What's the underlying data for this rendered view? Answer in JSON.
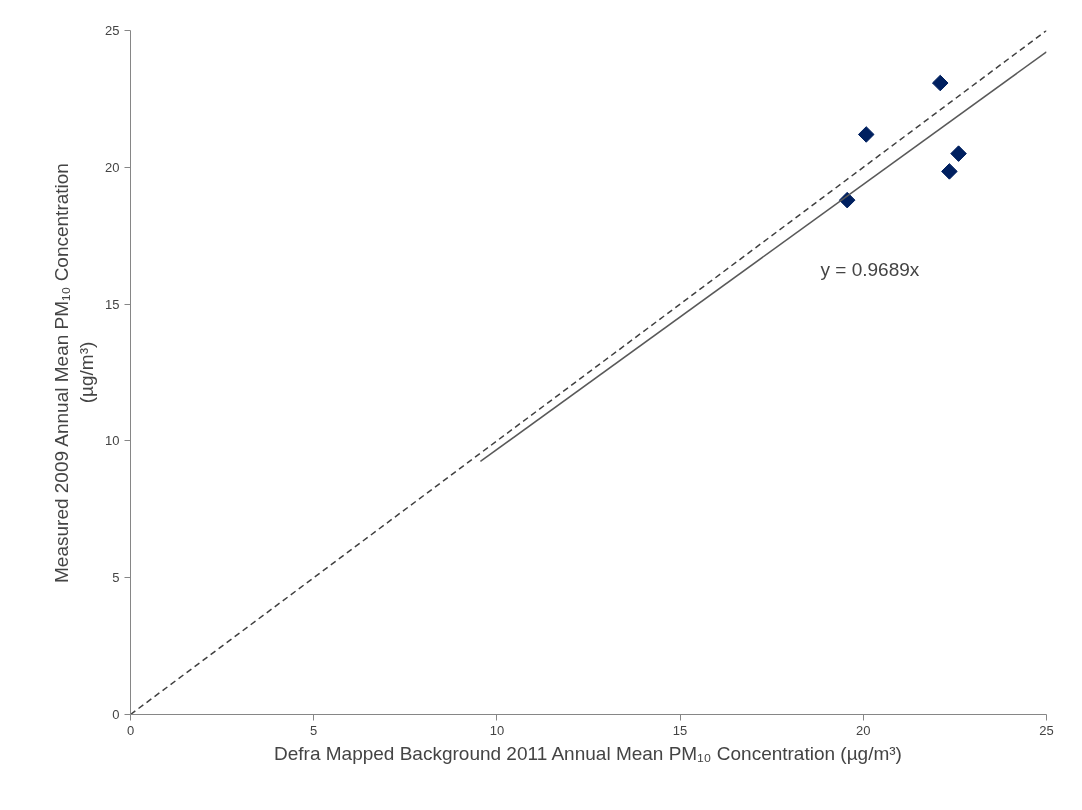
{
  "chart_data": {
    "type": "scatter",
    "xlabel": "Defra Mapped Background 2011 Annual Mean PM₁₀ Concentration (µg/m³)",
    "ylabel": "Measured 2009 Annual Mean PM₁₀ Concentration\n(µg/m³)",
    "xlim": [
      0,
      25
    ],
    "ylim": [
      0,
      25
    ],
    "xticks": [
      0,
      5,
      10,
      15,
      20,
      25
    ],
    "yticks": [
      0,
      5,
      10,
      15,
      20,
      25
    ],
    "grid": false,
    "series": [
      {
        "color": "#002060",
        "marker": "diamond",
        "x": [
          19.56,
          20.08,
          22.1,
          22.35,
          22.6
        ],
        "values": [
          18.8,
          21.2,
          23.08,
          19.85,
          20.5
        ]
      },
      {
        "type": "line",
        "color": "#595959",
        "line_style": "solid",
        "marker": "none",
        "x": [
          9.55,
          25
        ],
        "values": [
          9.25,
          24.22
        ]
      },
      {
        "type": "line",
        "color": "#404040",
        "line_style": "dashed",
        "marker": "none",
        "x": [
          0,
          25
        ],
        "values": [
          0,
          25
        ]
      }
    ],
    "annotations": [
      "y = 0.9689x"
    ]
  }
}
